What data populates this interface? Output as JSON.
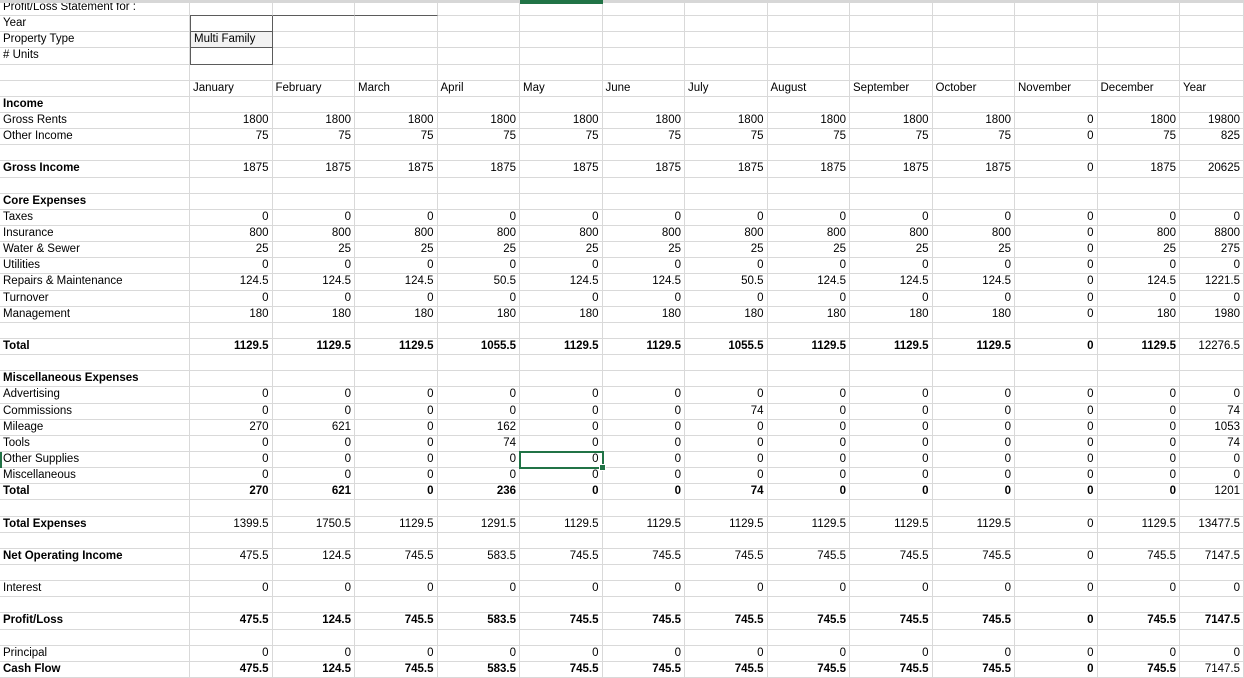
{
  "form": {
    "rows": [
      {
        "label": "Profit/Loss Statement for :",
        "value": ""
      },
      {
        "label": "Year",
        "value": ""
      },
      {
        "label": "Property Type",
        "value": "Multi Family"
      },
      {
        "label": "# Units",
        "value": ""
      }
    ]
  },
  "columns": [
    "January",
    "February",
    "March",
    "April",
    "May",
    "June",
    "July",
    "August",
    "September",
    "October",
    "November",
    "December",
    "Year"
  ],
  "rows": [
    {
      "label": "Income",
      "bold_label": true,
      "values": null
    },
    {
      "label": "Gross Rents",
      "values": [
        "1800",
        "1800",
        "1800",
        "1800",
        "1800",
        "1800",
        "1800",
        "1800",
        "1800",
        "1800",
        "0",
        "1800",
        "19800"
      ]
    },
    {
      "label": "Other Income",
      "values": [
        "75",
        "75",
        "75",
        "75",
        "75",
        "75",
        "75",
        "75",
        "75",
        "75",
        "0",
        "75",
        "825"
      ]
    },
    {
      "label": "",
      "values": null
    },
    {
      "label": "Gross Income",
      "bold_label": true,
      "values": [
        "1875",
        "1875",
        "1875",
        "1875",
        "1875",
        "1875",
        "1875",
        "1875",
        "1875",
        "1875",
        "0",
        "1875",
        "20625"
      ]
    },
    {
      "label": "",
      "values": null
    },
    {
      "label": "Core Expenses",
      "bold_label": true,
      "values": null
    },
    {
      "label": "Taxes",
      "values": [
        "0",
        "0",
        "0",
        "0",
        "0",
        "0",
        "0",
        "0",
        "0",
        "0",
        "0",
        "0",
        "0"
      ]
    },
    {
      "label": "Insurance",
      "values": [
        "800",
        "800",
        "800",
        "800",
        "800",
        "800",
        "800",
        "800",
        "800",
        "800",
        "0",
        "800",
        "8800"
      ]
    },
    {
      "label": "Water & Sewer",
      "values": [
        "25",
        "25",
        "25",
        "25",
        "25",
        "25",
        "25",
        "25",
        "25",
        "25",
        "0",
        "25",
        "275"
      ]
    },
    {
      "label": "Utilities",
      "values": [
        "0",
        "0",
        "0",
        "0",
        "0",
        "0",
        "0",
        "0",
        "0",
        "0",
        "0",
        "0",
        "0"
      ]
    },
    {
      "label": "Repairs & Maintenance",
      "values": [
        "124.5",
        "124.5",
        "124.5",
        "50.5",
        "124.5",
        "124.5",
        "50.5",
        "124.5",
        "124.5",
        "124.5",
        "0",
        "124.5",
        "1221.5"
      ]
    },
    {
      "label": "Turnover",
      "values": [
        "0",
        "0",
        "0",
        "0",
        "0",
        "0",
        "0",
        "0",
        "0",
        "0",
        "0",
        "0",
        "0"
      ]
    },
    {
      "label": "Management",
      "values": [
        "180",
        "180",
        "180",
        "180",
        "180",
        "180",
        "180",
        "180",
        "180",
        "180",
        "0",
        "180",
        "1980"
      ]
    },
    {
      "label": "",
      "values": null
    },
    {
      "label": "Total",
      "bold_label": true,
      "bold_values": true,
      "values": [
        "1129.5",
        "1129.5",
        "1129.5",
        "1055.5",
        "1129.5",
        "1129.5",
        "1055.5",
        "1129.5",
        "1129.5",
        "1129.5",
        "0",
        "1129.5",
        "12276.5"
      ]
    },
    {
      "label": "",
      "values": null
    },
    {
      "label": "Miscellaneous Expenses",
      "bold_label": true,
      "values": null
    },
    {
      "label": "Advertising",
      "values": [
        "0",
        "0",
        "0",
        "0",
        "0",
        "0",
        "0",
        "0",
        "0",
        "0",
        "0",
        "0",
        "0"
      ]
    },
    {
      "label": "Commissions",
      "values": [
        "0",
        "0",
        "0",
        "0",
        "0",
        "0",
        "74",
        "0",
        "0",
        "0",
        "0",
        "0",
        "74"
      ]
    },
    {
      "label": "Mileage",
      "values": [
        "270",
        "621",
        "0",
        "162",
        "0",
        "0",
        "0",
        "0",
        "0",
        "0",
        "0",
        "0",
        "1053"
      ]
    },
    {
      "label": "Tools",
      "values": [
        "0",
        "0",
        "0",
        "74",
        "0",
        "0",
        "0",
        "0",
        "0",
        "0",
        "0",
        "0",
        "74"
      ]
    },
    {
      "label": "Other Supplies",
      "values": [
        "0",
        "0",
        "0",
        "0",
        "0",
        "0",
        "0",
        "0",
        "0",
        "0",
        "0",
        "0",
        "0"
      ]
    },
    {
      "label": "Miscellaneous",
      "values": [
        "0",
        "0",
        "0",
        "0",
        "0",
        "0",
        "0",
        "0",
        "0",
        "0",
        "0",
        "0",
        "0"
      ]
    },
    {
      "label": "Total",
      "bold_label": true,
      "bold_values": true,
      "values": [
        "270",
        "621",
        "0",
        "236",
        "0",
        "0",
        "74",
        "0",
        "0",
        "0",
        "0",
        "0",
        "1201"
      ]
    },
    {
      "label": "",
      "values": null
    },
    {
      "label": "Total Expenses",
      "bold_label": true,
      "values": [
        "1399.5",
        "1750.5",
        "1129.5",
        "1291.5",
        "1129.5",
        "1129.5",
        "1129.5",
        "1129.5",
        "1129.5",
        "1129.5",
        "0",
        "1129.5",
        "13477.5"
      ]
    },
    {
      "label": "",
      "values": null
    },
    {
      "label": "Net Operating Income",
      "bold_label": true,
      "values": [
        "475.5",
        "124.5",
        "745.5",
        "583.5",
        "745.5",
        "745.5",
        "745.5",
        "745.5",
        "745.5",
        "745.5",
        "0",
        "745.5",
        "7147.5"
      ]
    },
    {
      "label": "",
      "values": null
    },
    {
      "label": "Interest",
      "values": [
        "0",
        "0",
        "0",
        "0",
        "0",
        "0",
        "0",
        "0",
        "0",
        "0",
        "0",
        "0",
        "0"
      ]
    },
    {
      "label": "",
      "values": null
    },
    {
      "label": "Profit/Loss",
      "bold_label": true,
      "bold_values": true,
      "bold_year": true,
      "values": [
        "475.5",
        "124.5",
        "745.5",
        "583.5",
        "745.5",
        "745.5",
        "745.5",
        "745.5",
        "745.5",
        "745.5",
        "0",
        "745.5",
        "7147.5"
      ]
    },
    {
      "label": "",
      "values": null
    },
    {
      "label": "Principal",
      "values": [
        "0",
        "0",
        "0",
        "0",
        "0",
        "0",
        "0",
        "0",
        "0",
        "0",
        "0",
        "0",
        "0"
      ]
    },
    {
      "label": "Cash Flow",
      "bold_label": true,
      "bold_values": true,
      "values": [
        "475.5",
        "124.5",
        "745.5",
        "583.5",
        "745.5",
        "745.5",
        "745.5",
        "745.5",
        "745.5",
        "745.5",
        "0",
        "745.5",
        "7147.5"
      ]
    }
  ],
  "selection": {
    "row": "Other Supplies",
    "column": "May",
    "value": "0"
  },
  "colors": {
    "selection_green": "#217346",
    "gridline": "#d9d9d9",
    "header_strip": "#d7d7d7",
    "input_fill": "#f2f2f2",
    "dark_border": "#5b5b5b"
  }
}
